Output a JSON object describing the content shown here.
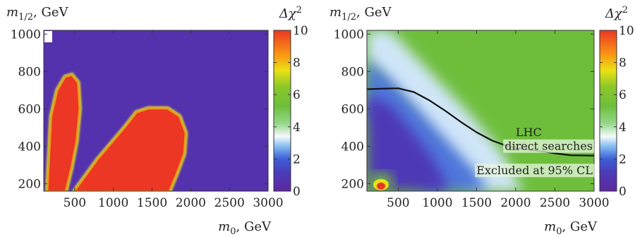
{
  "chart_data": [
    {
      "type": "heatmap",
      "panel": "left",
      "ylabel": "m_{1/2}, GeV",
      "xlabel": "m_0, GeV",
      "colorbar_label": "Δχ²",
      "xlim": [
        100,
        3000
      ],
      "ylim": [
        160,
        1020
      ],
      "zlim": [
        0,
        10
      ],
      "xticks": [
        500,
        1000,
        1500,
        2000,
        2500,
        3000
      ],
      "yticks": [
        200,
        400,
        600,
        800,
        1000
      ],
      "colorbar_ticks": [
        0,
        2,
        4,
        6,
        8,
        10
      ],
      "background_value": 0.6,
      "regions": [
        {
          "description": "narrow lobe",
          "value": 10,
          "polygon": [
            [
              150,
              160
            ],
            [
              200,
              560
            ],
            [
              280,
              700
            ],
            [
              380,
              770
            ],
            [
              460,
              780
            ],
            [
              540,
              740
            ],
            [
              560,
              600
            ],
            [
              520,
              430
            ],
            [
              450,
              280
            ],
            [
              380,
              160
            ]
          ]
        },
        {
          "description": "wide lobe",
          "value": 10,
          "polygon": [
            [
              500,
              160
            ],
            [
              800,
              330
            ],
            [
              1150,
              500
            ],
            [
              1300,
              580
            ],
            [
              1450,
              600
            ],
            [
              1700,
              600
            ],
            [
              1850,
              560
            ],
            [
              1930,
              470
            ],
            [
              1910,
              360
            ],
            [
              1820,
              260
            ],
            [
              1720,
              160
            ]
          ]
        }
      ]
    },
    {
      "type": "heatmap",
      "panel": "right",
      "ylabel": "m_{1/2}, GeV",
      "xlabel": "m_0, GeV",
      "colorbar_label": "Δχ²",
      "xlim": [
        100,
        3000
      ],
      "ylim": [
        160,
        1020
      ],
      "zlim": [
        0,
        10
      ],
      "xticks": [
        500,
        1000,
        1500,
        2000,
        2500,
        3000
      ],
      "yticks": [
        200,
        400,
        600,
        800,
        1000
      ],
      "colorbar_ticks": [
        0,
        2,
        4,
        6,
        8,
        10
      ],
      "background_value": 5.3,
      "regions": [
        {
          "description": "white transition band",
          "value": 3.2,
          "polygon": [
            [
              100,
              1020
            ],
            [
              400,
              1020
            ],
            [
              900,
              800
            ],
            [
              1400,
              580
            ],
            [
              1800,
              380
            ],
            [
              2100,
              160
            ],
            [
              1500,
              160
            ],
            [
              1100,
              350
            ],
            [
              700,
              560
            ],
            [
              300,
              760
            ],
            [
              100,
              860
            ]
          ]
        },
        {
          "description": "blue band",
          "value": 2.2,
          "polygon": [
            [
              100,
              870
            ],
            [
              400,
              760
            ],
            [
              800,
              580
            ],
            [
              1150,
              420
            ],
            [
              1500,
              260
            ],
            [
              1650,
              160
            ],
            [
              800,
              160
            ],
            [
              600,
              330
            ],
            [
              300,
              500
            ],
            [
              100,
              560
            ]
          ]
        },
        {
          "description": "purple core",
          "value": 1.0,
          "polygon": [
            [
              100,
              680
            ],
            [
              400,
              620
            ],
            [
              700,
              470
            ],
            [
              900,
              360
            ],
            [
              1050,
              260
            ],
            [
              1150,
              160
            ],
            [
              100,
              160
            ]
          ]
        }
      ],
      "hot_spot": {
        "x": 280,
        "y": 210,
        "value": 10
      },
      "contour": {
        "name": "LHC direct searches",
        "x": [
          100,
          300,
          500,
          700,
          900,
          1100,
          1300,
          1500,
          1700,
          1900,
          2100,
          2300,
          2500,
          2700,
          3000
        ],
        "y": [
          705,
          708,
          710,
          690,
          645,
          590,
          530,
          475,
          430,
          400,
          385,
          375,
          362,
          352,
          350
        ]
      },
      "annotations": [
        "LHC",
        "direct searches",
        "Excluded at 95% CL"
      ]
    }
  ]
}
